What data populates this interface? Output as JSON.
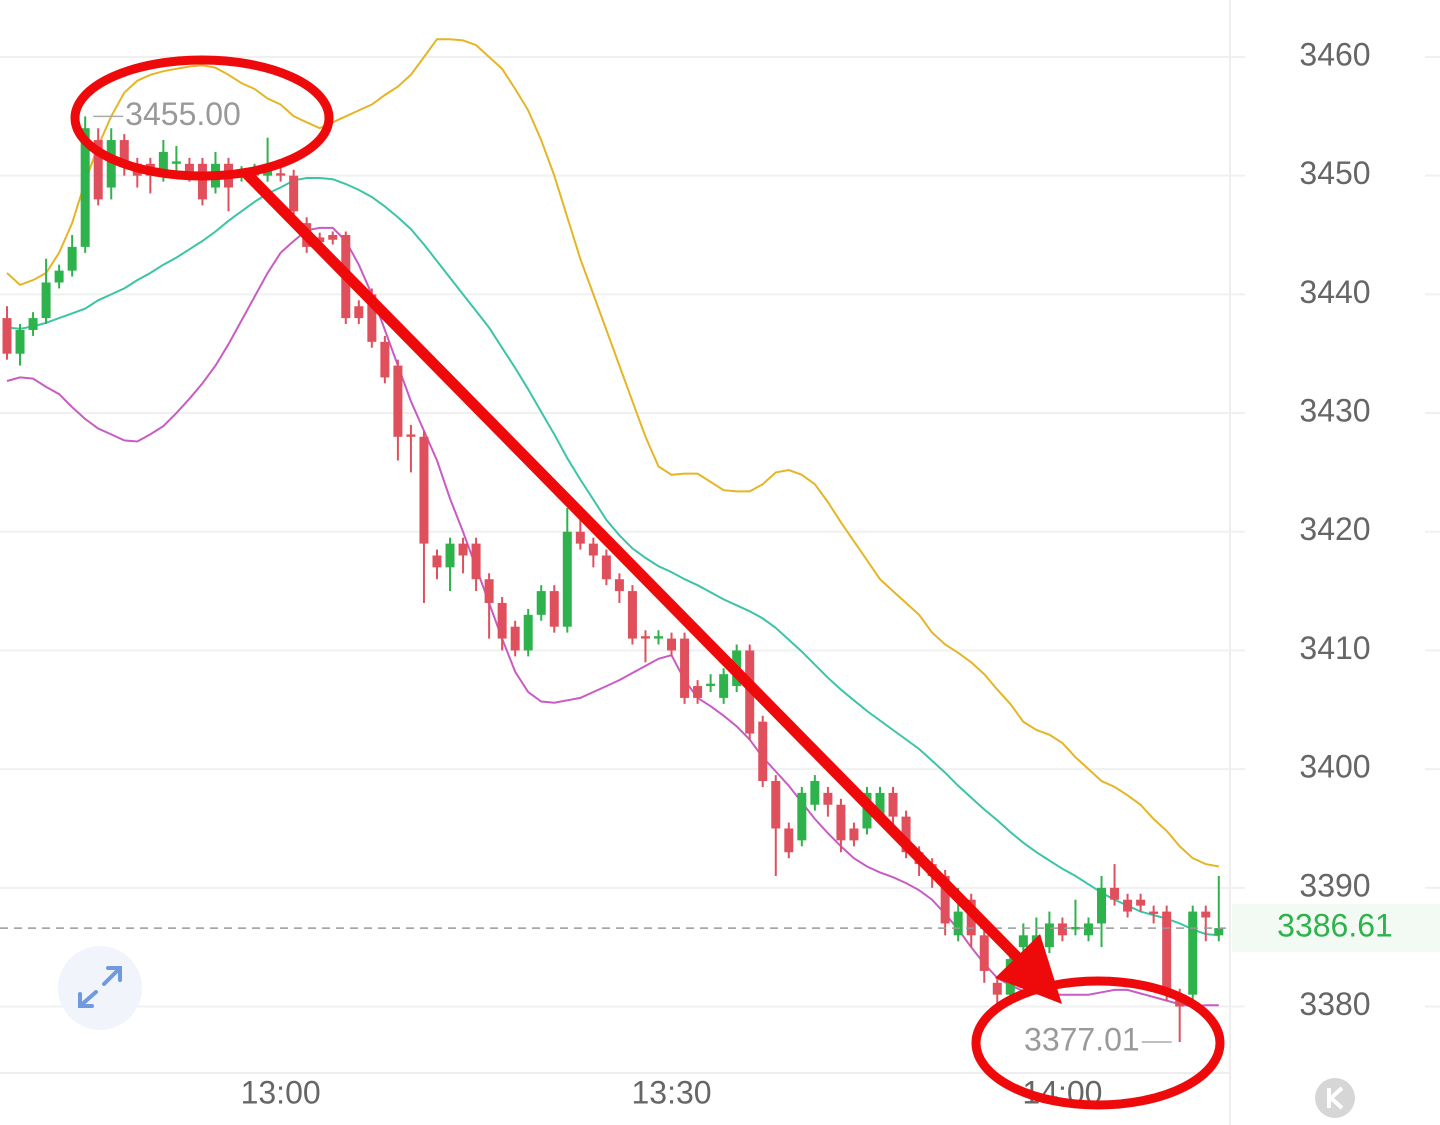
{
  "chart_data": {
    "type": "candlestick",
    "categories": [
      null,
      null,
      null,
      null,
      null,
      null,
      null,
      null,
      null,
      null,
      null,
      null,
      null,
      null,
      null,
      null,
      null,
      null,
      null,
      null,
      null,
      "13:00",
      null,
      null,
      null,
      null,
      null,
      null,
      null,
      null,
      null,
      null,
      null,
      null,
      null,
      null,
      null,
      null,
      null,
      null,
      null,
      null,
      null,
      null,
      null,
      null,
      null,
      null,
      null,
      null,
      null,
      "13:30",
      null,
      null,
      null,
      null,
      null,
      null,
      null,
      null,
      null,
      null,
      null,
      null,
      null,
      null,
      null,
      null,
      null,
      null,
      null,
      null,
      null,
      null,
      null,
      null,
      null,
      null,
      null,
      null,
      null,
      "14:00",
      null,
      null,
      null,
      null,
      null,
      null,
      null,
      null,
      null,
      null,
      null,
      null
    ],
    "open": [
      3438,
      3435,
      3437,
      3438,
      3441,
      3442,
      3444,
      3453,
      3449,
      3453,
      3451,
      3451,
      3450,
      3451,
      3451,
      3451,
      3449,
      3451,
      3450,
      3450,
      3450,
      3450.2,
      3450,
      3446,
      3444.8,
      3445,
      3445,
      3439,
      3440,
      3436,
      3434,
      3428.2,
      3428,
      3418,
      3417,
      3419,
      3419,
      3416,
      3414,
      3412,
      3410,
      3413,
      3415,
      3412,
      3420,
      3419,
      3418,
      3416,
      3415,
      3411.2,
      3411,
      3411,
      3411,
      3407,
      3407,
      3406,
      3407,
      3410,
      3404,
      3399,
      3395,
      3394,
      3397,
      3398,
      3397,
      3395,
      3395,
      3396,
      3398,
      3396,
      3393,
      3392,
      3391,
      3386,
      3389,
      3386,
      3382,
      3381,
      3385,
      3385,
      3385,
      3387,
      3386.5,
      3386,
      3387,
      3390,
      3389,
      3389,
      3388,
      3388,
      3381,
      3381,
      3388,
      3386
    ],
    "high": [
      3439,
      3437.5,
      3438.5,
      3443,
      3442.5,
      3445,
      3455,
      3454,
      3454,
      3453.5,
      3451.5,
      3451.5,
      3453,
      3452.5,
      3451.5,
      3451.5,
      3452,
      3451.5,
      3450.8,
      3451,
      3453.2,
      3450.8,
      3450.5,
      3446.5,
      3445.2,
      3445.3,
      3445.3,
      3439.5,
      3440.5,
      3436.5,
      3434.5,
      3429,
      3428.5,
      3418.5,
      3419.5,
      3419.5,
      3419.5,
      3416.5,
      3414.5,
      3412.5,
      3413.5,
      3415.5,
      3415.5,
      3422,
      3422,
      3419.5,
      3418.5,
      3416.5,
      3415.5,
      3411.7,
      3411.7,
      3411.5,
      3411.5,
      3407.5,
      3408,
      3408.5,
      3410.5,
      3410.5,
      3404.5,
      3399.5,
      3395.5,
      3398.5,
      3399.5,
      3398.5,
      3397.5,
      3395.5,
      3398.5,
      3398.5,
      3398.5,
      3396.5,
      3393.5,
      3392.5,
      3391.5,
      3390,
      3389.5,
      3386.5,
      3382.5,
      3385,
      3387,
      3387.5,
      3388,
      3387.5,
      3389,
      3387.5,
      3391,
      3392,
      3389.5,
      3389.5,
      3388.5,
      3388.5,
      3381.5,
      3388.5,
      3388.5,
      3391
    ],
    "low": [
      3434.5,
      3434,
      3436.5,
      3437.5,
      3440.5,
      3441.5,
      3443.5,
      3447.5,
      3448,
      3450,
      3449,
      3448.5,
      3449.5,
      3450,
      3449.5,
      3447.5,
      3448.5,
      3447,
      3449.5,
      3449.5,
      3449.5,
      3449.5,
      3446.5,
      3443.5,
      3444,
      3444.2,
      3437.5,
      3437.5,
      3435.5,
      3432.5,
      3426,
      3425,
      3414,
      3416,
      3415,
      3416.5,
      3415,
      3411,
      3410,
      3409.5,
      3409.5,
      3412.5,
      3411.5,
      3411.5,
      3418.5,
      3417,
      3415.5,
      3414,
      3410.5,
      3409,
      3410.5,
      3409.5,
      3405.5,
      3405.5,
      3406.5,
      3405.5,
      3406.5,
      3402.5,
      3398.5,
      3391,
      3392.5,
      3393.5,
      3396.5,
      3396,
      3393,
      3393.5,
      3394.5,
      3395.5,
      3395,
      3392.5,
      3391,
      3390,
      3386,
      3385.5,
      3385,
      3382,
      3379.5,
      3380.5,
      3384.5,
      3384,
      3384.5,
      3385.5,
      3386,
      3385.5,
      3385,
      3388.5,
      3387.5,
      3388,
      3387,
      3380.5,
      3377.01,
      3380.5,
      3385.5,
      3385.5
    ],
    "close": [
      3435,
      3437,
      3438,
      3441,
      3442,
      3444,
      3454,
      3448,
      3453,
      3451,
      3450,
      3450,
      3452,
      3451.2,
      3450,
      3448,
      3451,
      3449,
      3450.2,
      3450.5,
      3451,
      3450,
      3447,
      3444,
      3444.4,
      3444.6,
      3438,
      3438,
      3436,
      3433,
      3428,
      3428,
      3419,
      3417,
      3419,
      3418,
      3416,
      3414,
      3411,
      3410,
      3413,
      3415,
      3412,
      3420,
      3419,
      3418,
      3416,
      3415,
      3411,
      3411,
      3411.2,
      3410,
      3406,
      3406,
      3407.2,
      3408,
      3410,
      3403,
      3399,
      3395,
      3393,
      3398,
      3399,
      3397,
      3394,
      3394,
      3398,
      3398,
      3396,
      3393,
      3392,
      3391,
      3387,
      3388,
      3386,
      3383,
      3381,
      3384,
      3386,
      3386,
      3387,
      3386,
      3386.7,
      3387,
      3390,
      3389,
      3388,
      3388.5,
      3387.8,
      3381,
      3380,
      3388,
      3387.5,
      3386.61
    ],
    "up_color": "#2eb24c",
    "down_color": "#e0505c",
    "lines": [
      {
        "color": "#e6b526",
        "values": [
          3441.8,
          3440.8,
          3441.2,
          3441.8,
          3443.5,
          3446,
          3449.5,
          3452.5,
          3455,
          3457,
          3458,
          3458.5,
          3458.8,
          3459,
          3459.2,
          3459.3,
          3459.1,
          3458.5,
          3457.8,
          3457.3,
          3456.5,
          3456,
          3455,
          3454.5,
          3454,
          3454.5,
          3455,
          3455.5,
          3456,
          3456.8,
          3457.5,
          3458.5,
          3460,
          3461.5,
          3461.5,
          3461.4,
          3461,
          3460,
          3459,
          3457.3,
          3455.5,
          3453,
          3450,
          3446.5,
          3443,
          3440,
          3437,
          3434,
          3431,
          3428,
          3425.5,
          3424.8,
          3424.9,
          3424.9,
          3424.2,
          3423.5,
          3423.4,
          3423.4,
          3424,
          3425,
          3425.2,
          3424.8,
          3424,
          3422.5,
          3420.8,
          3419.2,
          3417.6,
          3416,
          3415,
          3414,
          3413,
          3411.5,
          3410.5,
          3409.8,
          3409,
          3408,
          3406.7,
          3405.5,
          3404,
          3403.3,
          3402.9,
          3402.2,
          3401,
          3400,
          3399,
          3398.5,
          3397.8,
          3397,
          3395.8,
          3394.8,
          3393.5,
          3392.5,
          3392,
          3391.8
        ]
      },
      {
        "color": "#3cc4a6",
        "values": [
          3437.2,
          3437.1,
          3437.3,
          3437.6,
          3438,
          3438.4,
          3438.8,
          3439.5,
          3440,
          3440.5,
          3441.2,
          3441.8,
          3442.5,
          3443.1,
          3443.8,
          3444.5,
          3445.3,
          3446.2,
          3447,
          3447.8,
          3448.5,
          3449,
          3449.6,
          3449.8,
          3449.8,
          3449.7,
          3449.3,
          3448.8,
          3448.2,
          3447.4,
          3446.5,
          3445.5,
          3444.2,
          3442.8,
          3441.4,
          3440,
          3438.6,
          3437.2,
          3435.5,
          3433.8,
          3432,
          3430.1,
          3428.2,
          3426.2,
          3424.4,
          3422.7,
          3421,
          3419.7,
          3418.6,
          3417.8,
          3417.1,
          3416.6,
          3416,
          3415.5,
          3414.9,
          3414.3,
          3413.8,
          3413.3,
          3412.7,
          3411.9,
          3410.9,
          3409.9,
          3408.8,
          3407.7,
          3406.7,
          3405.8,
          3404.9,
          3404.1,
          3403.3,
          3402.5,
          3401.7,
          3400.7,
          3399.7,
          3398.6,
          3397.6,
          3396.6,
          3395.7,
          3394.7,
          3393.8,
          3393,
          3392.3,
          3391.6,
          3391,
          3390.3,
          3389.6,
          3389,
          3388.5,
          3388,
          3387.7,
          3387.4,
          3387,
          3386.5,
          3386.1,
          3386
        ]
      },
      {
        "color": "#c85cc4",
        "values": [
          3432.7,
          3433,
          3432.9,
          3432.2,
          3431.6,
          3430.5,
          3429.5,
          3428.7,
          3428.2,
          3427.7,
          3427.6,
          3428.2,
          3428.9,
          3430,
          3431.2,
          3432.5,
          3434,
          3435.8,
          3437.8,
          3439.8,
          3441.8,
          3443.5,
          3444.5,
          3445.4,
          3445.6,
          3445.6,
          3444.5,
          3442.5,
          3440,
          3437,
          3434,
          3431,
          3428.5,
          3426,
          3422.8,
          3420,
          3417,
          3414,
          3411,
          3408.2,
          3406.5,
          3405.7,
          3405.6,
          3405.8,
          3406,
          3406.5,
          3407,
          3407.5,
          3408.1,
          3408.7,
          3409.3,
          3409.6,
          3407.5,
          3406,
          3405.3,
          3404.5,
          3403.6,
          3402.5,
          3401,
          3399.8,
          3398.6,
          3397.2,
          3395.8,
          3394.6,
          3393.5,
          3392.5,
          3391.8,
          3391.3,
          3390.9,
          3390.4,
          3389.8,
          3389,
          3387.8,
          3386.5,
          3385,
          3383.6,
          3382.4,
          3381.8,
          3381.3,
          3381.1,
          3381,
          3381,
          3381,
          3381,
          3381.2,
          3381.4,
          3381.4,
          3381.1,
          3380.8,
          3380.5,
          3380.2,
          3380,
          3380.1,
          3380.1
        ]
      }
    ],
    "ylim": [
      3374.4,
      3464.8
    ],
    "yticks": [
      3380,
      3390,
      3400,
      3410,
      3420,
      3430,
      3440,
      3450,
      3460
    ],
    "grid": true,
    "high_marker": {
      "value": 3455,
      "label": "3455.00"
    },
    "low_marker": {
      "value": 3377.01,
      "label": "3377.01"
    },
    "last_price": {
      "value": 3386.61,
      "label": "3386.61",
      "color": "#2eb24c"
    }
  }
}
